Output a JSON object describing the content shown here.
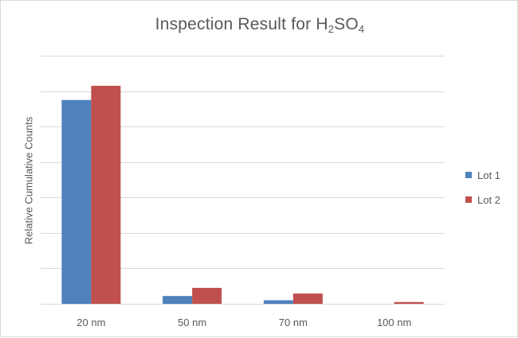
{
  "chart_data": {
    "type": "bar",
    "title": {
      "main": "Inspection Result for H",
      "sub1": "2",
      "mid": "SO",
      "sub2": "4"
    },
    "ylabel": "Relative Cumulative Counts",
    "xlabel": "",
    "categories": [
      "20 nm",
      "50 nm",
      "70 nm",
      "100 nm"
    ],
    "series": [
      {
        "name": "Lot 1",
        "color": "#4f81bd",
        "values": [
          5.75,
          0.22,
          0.1,
          0
        ]
      },
      {
        "name": "Lot 2",
        "color": "#c0504d",
        "values": [
          6.15,
          0.45,
          0.29,
          0.05
        ]
      }
    ],
    "ylim": [
      0,
      7
    ],
    "yticks_labeled": false,
    "grid": true,
    "legend": {
      "position": "right"
    }
  }
}
